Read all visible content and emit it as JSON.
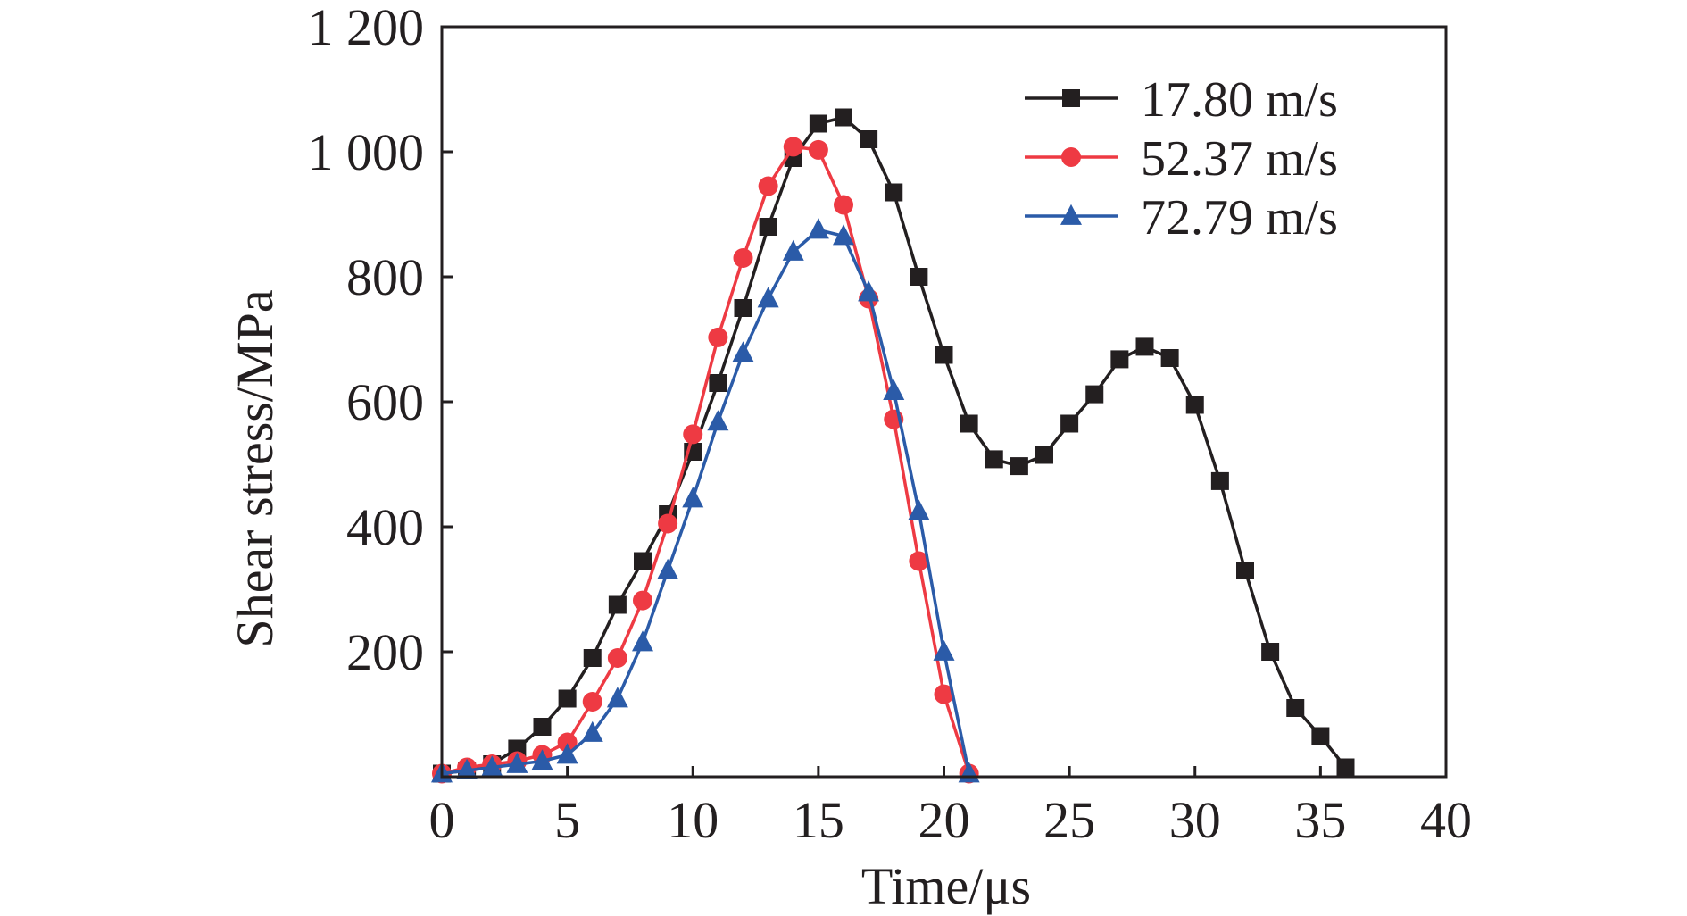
{
  "chart_data": {
    "type": "line",
    "title": "",
    "xlabel": "Time/μs",
    "ylabel": "Shear stress/MPa",
    "xlim": [
      0,
      40
    ],
    "ylim": [
      0,
      1200
    ],
    "xticks": [
      0,
      5,
      10,
      15,
      20,
      25,
      30,
      35,
      40
    ],
    "xtick_labels": [
      "0",
      "5",
      "10",
      "15",
      "20",
      "25",
      "30",
      "35",
      "40"
    ],
    "yticks": [
      200,
      400,
      600,
      800,
      1000,
      1200
    ],
    "ytick_labels": [
      "200",
      "400",
      "600",
      "800",
      "1 000",
      "1 200"
    ],
    "grid": false,
    "legend_position": "top-right",
    "series": [
      {
        "name": "17.80 m/s",
        "color": "#231f20",
        "marker": "square",
        "x": [
          0,
          1,
          2,
          3,
          4,
          5,
          6,
          7,
          8,
          9,
          10,
          11,
          12,
          13,
          14,
          15,
          16,
          17,
          18,
          19,
          20,
          21,
          22,
          23,
          24,
          25,
          26,
          27,
          28,
          29,
          30,
          31,
          32,
          33,
          34,
          35,
          36
        ],
        "y": [
          5,
          10,
          20,
          45,
          80,
          125,
          190,
          275,
          345,
          420,
          520,
          630,
          750,
          880,
          990,
          1045,
          1055,
          1020,
          935,
          800,
          675,
          565,
          508,
          497,
          515,
          565,
          612,
          668,
          688,
          670,
          595,
          473,
          330,
          200,
          110,
          65,
          15
        ]
      },
      {
        "name": "52.37 m/s",
        "color": "#ee3a43",
        "marker": "circle",
        "x": [
          0,
          1,
          2,
          3,
          4,
          5,
          6,
          7,
          8,
          9,
          10,
          11,
          12,
          13,
          14,
          15,
          16,
          17,
          18,
          19,
          20,
          21
        ],
        "y": [
          5,
          15,
          20,
          25,
          35,
          55,
          120,
          190,
          282,
          405,
          548,
          703,
          830,
          945,
          1008,
          1003,
          915,
          765,
          572,
          345,
          132,
          5
        ]
      },
      {
        "name": "72.79 m/s",
        "color": "#2b5ba8",
        "marker": "triangle",
        "x": [
          0,
          1,
          2,
          3,
          4,
          5,
          6,
          7,
          8,
          9,
          10,
          11,
          12,
          13,
          14,
          15,
          16,
          17,
          18,
          19,
          20,
          21
        ],
        "y": [
          5,
          10,
          15,
          20,
          25,
          35,
          70,
          125,
          215,
          330,
          445,
          568,
          678,
          765,
          840,
          875,
          865,
          775,
          617,
          425,
          200,
          5
        ]
      }
    ]
  }
}
